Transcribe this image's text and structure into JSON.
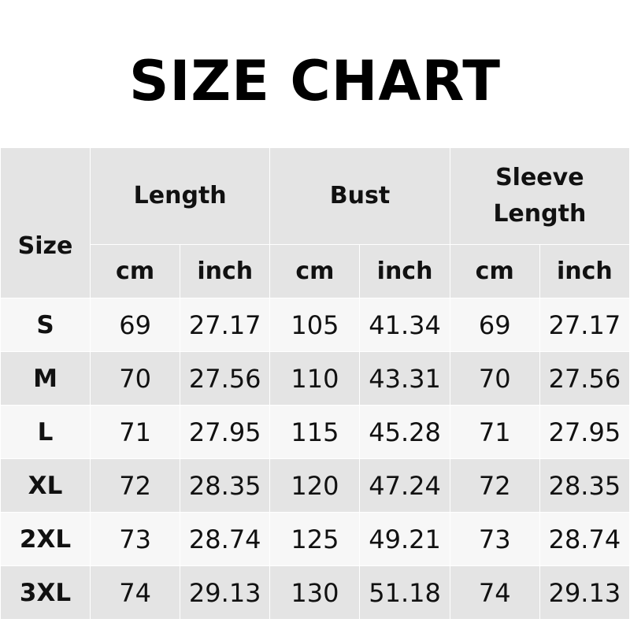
{
  "title": "SIZE CHART",
  "chart_data": {
    "type": "table",
    "title": "SIZE CHART",
    "header": {
      "size": "Size",
      "groups": [
        "Length",
        "Bust",
        "Sleeve Length"
      ],
      "units": [
        "cm",
        "inch",
        "cm",
        "inch",
        "cm",
        "inch"
      ]
    },
    "rows": [
      [
        "S",
        "69",
        "27.17",
        "105",
        "41.34",
        "69",
        "27.17"
      ],
      [
        "M",
        "70",
        "27.56",
        "110",
        "43.31",
        "70",
        "27.56"
      ],
      [
        "L",
        "71",
        "27.95",
        "115",
        "45.28",
        "71",
        "27.95"
      ],
      [
        "XL",
        "72",
        "28.35",
        "120",
        "47.24",
        "72",
        "28.35"
      ],
      [
        "2XL",
        "73",
        "28.74",
        "125",
        "49.21",
        "73",
        "28.74"
      ],
      [
        "3XL",
        "74",
        "29.13",
        "130",
        "51.18",
        "74",
        "29.13"
      ]
    ],
    "colors": {
      "header_bg": "#e4e4e4",
      "row_light": "#f7f7f7",
      "row_dark": "#e4e4e4"
    }
  }
}
